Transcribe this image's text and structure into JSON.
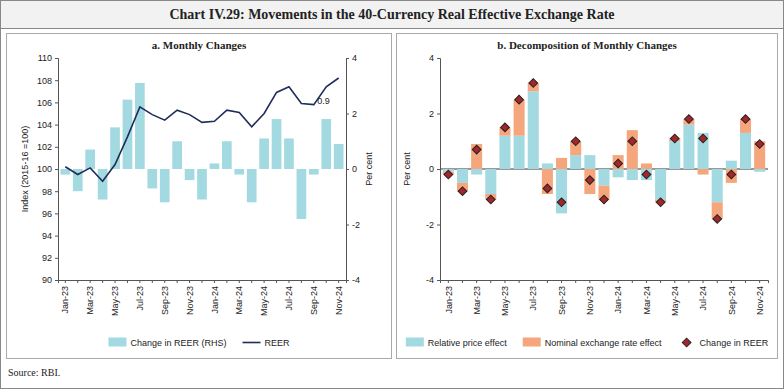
{
  "title": "Chart IV.29: Movements in the 40-Currency Real Effective Exchange Rate",
  "source": "Source: RBI.",
  "chart_data": [
    {
      "type": "bar",
      "title": "a. Monthly Changes",
      "y_label": "Index (2015-16 =100)",
      "y2_label": "Per cent",
      "categories": [
        "Jan-23",
        null,
        "Mar-23",
        null,
        "May-23",
        null,
        "Jul-23",
        null,
        "Sep-23",
        null,
        "Nov-23",
        null,
        "Jan-24",
        null,
        "Mar-24",
        null,
        "May-24",
        null,
        "Jul-24",
        null,
        "Sep-24",
        null,
        "Nov-24"
      ],
      "series": [
        {
          "name": "Change in REER (RHS)",
          "type": "bar",
          "axis": "y2",
          "color": "#a3dae1",
          "values": [
            -0.2,
            -0.8,
            0.7,
            -1.1,
            1.5,
            2.5,
            3.1,
            -0.7,
            -1.2,
            1.0,
            -0.4,
            -1.1,
            0.2,
            1.0,
            -0.2,
            -1.2,
            1.1,
            1.8,
            1.1,
            -1.8,
            -0.2,
            1.8,
            0.9
          ]
        },
        {
          "name": "REER",
          "type": "line",
          "color": "#1f2d5a",
          "line_style": "solid",
          "values": [
            100.2,
            99.5,
            100.1,
            98.9,
            100.4,
            102.9,
            105.6,
            104.9,
            104.4,
            105.3,
            104.9,
            104.2,
            104.3,
            105.3,
            105.1,
            103.8,
            105.0,
            106.9,
            107.4,
            105.9,
            105.8,
            107.4,
            108.2
          ]
        }
      ],
      "annotations": [
        "0.9"
      ],
      "ylim": [
        90,
        110
      ],
      "yticks": [
        90,
        92,
        94,
        96,
        98,
        100,
        102,
        104,
        106,
        108,
        110
      ],
      "y2lim": [
        -4,
        4
      ],
      "y2ticks": [
        -4,
        -2,
        0,
        2,
        4
      ],
      "grid": false,
      "legend": "bottom"
    },
    {
      "type": "bar",
      "title": "b. Decomposition of Monthly Changes",
      "y_label": "Per cent",
      "categories": [
        "Jan-23",
        null,
        "Mar-23",
        null,
        "May-23",
        null,
        "Jul-23",
        null,
        "Sep-23",
        null,
        "Nov-23",
        null,
        "Jan-24",
        null,
        "Mar-24",
        null,
        "May-24",
        null,
        "Jul-24",
        null,
        "Sep-24",
        null,
        "Nov-24"
      ],
      "series": [
        {
          "name": "Relative price effect",
          "type": "bar",
          "color": "#a3dae1",
          "values": [
            -0.1,
            -0.5,
            -0.2,
            -0.9,
            1.2,
            1.2,
            2.8,
            0.2,
            -1.6,
            0.5,
            0.5,
            -0.6,
            -0.3,
            -0.4,
            -0.4,
            -1.1,
            1.0,
            1.6,
            1.3,
            -1.2,
            0.3,
            1.3,
            -0.1
          ]
        },
        {
          "name": "Nominal exchange rate effect",
          "type": "bar",
          "color": "#f5a67c",
          "values": [
            -0.1,
            -0.3,
            0.9,
            -0.2,
            0.3,
            1.3,
            0.3,
            -0.9,
            0.4,
            0.5,
            -0.9,
            -0.5,
            0.5,
            1.4,
            0.2,
            -0.1,
            0.1,
            0.2,
            -0.2,
            -0.6,
            -0.5,
            0.5,
            1.0
          ]
        },
        {
          "name": "Change in REER",
          "type": "scatter",
          "marker": "diamond",
          "color": "#a3262a",
          "values": [
            -0.2,
            -0.8,
            0.7,
            -1.1,
            1.5,
            2.5,
            3.1,
            -0.7,
            -1.2,
            1.0,
            -0.4,
            -1.1,
            0.2,
            1.0,
            -0.2,
            -1.2,
            1.1,
            1.8,
            1.1,
            -1.8,
            -0.2,
            1.8,
            0.9
          ]
        }
      ],
      "ylim": [
        -4,
        4
      ],
      "yticks": [
        -4,
        -2,
        0,
        2,
        4
      ],
      "stacked": true,
      "grid": false,
      "legend": "bottom"
    }
  ]
}
